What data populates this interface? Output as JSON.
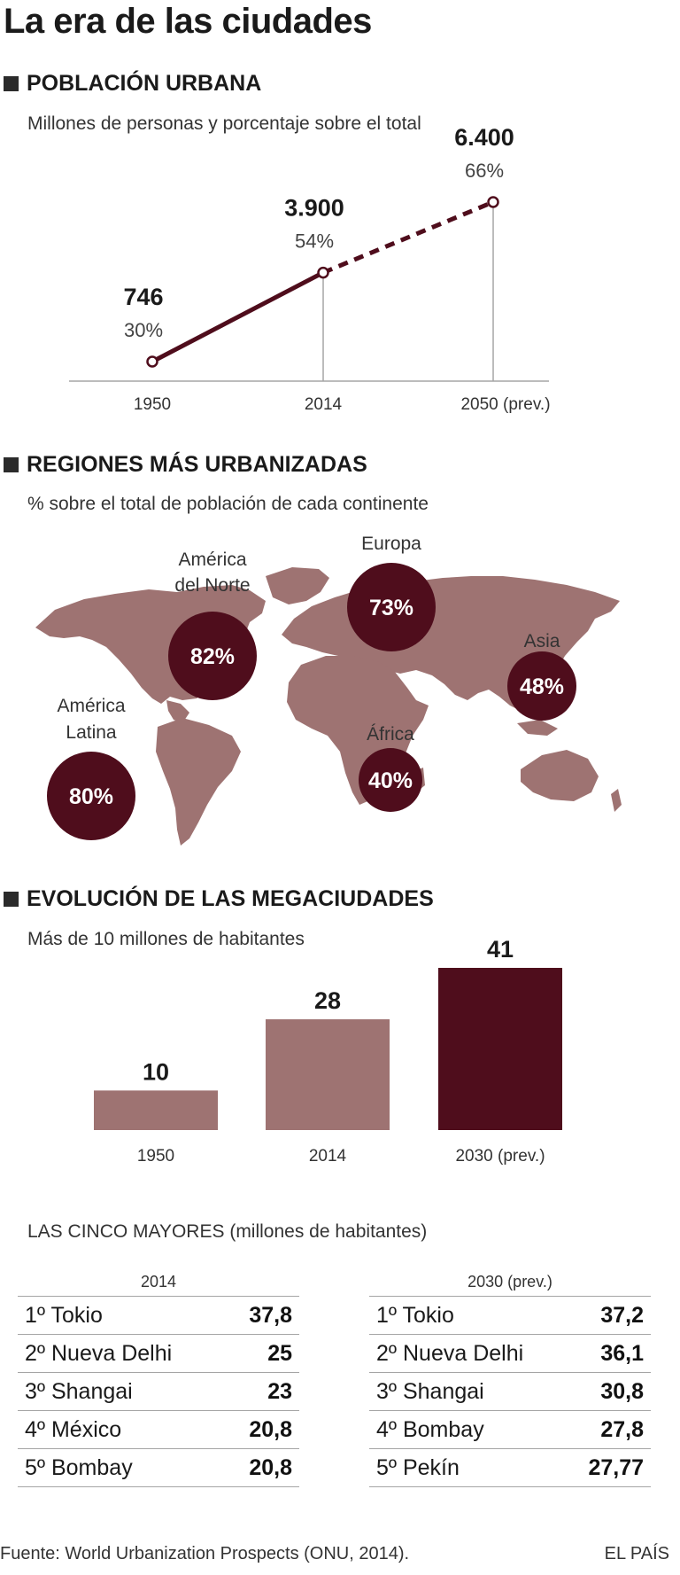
{
  "title": "La era de las ciudades",
  "sections": {
    "urban": {
      "title": "POBLACIÓN URBANA",
      "subtitle": "Millones de personas y porcentaje sobre el total"
    },
    "regions": {
      "title": "REGIONES MÁS URBANIZADAS",
      "subtitle": "% sobre el total de población de cada continente"
    },
    "mega": {
      "title": "EVOLUCIÓN DE LAS MEGACIUDADES",
      "subtitle": "Más de 10 millones de habitantes"
    },
    "top5": {
      "title": "LAS CINCO MAYORES (millones de habitantes)"
    }
  },
  "chart_data": [
    {
      "type": "line",
      "title": "POBLACIÓN URBANA",
      "subtitle": "Millones de personas y porcentaje sobre el total",
      "categories": [
        "1950",
        "2014",
        "2050 (prev.)"
      ],
      "values": [
        746,
        3900,
        6400
      ],
      "value_labels": [
        "746",
        "3.900",
        "6.400"
      ],
      "percent_labels": [
        "30%",
        "54%",
        "66%"
      ],
      "percent_values": [
        30,
        54,
        66
      ],
      "projected_from_index": 1,
      "color": "#4f0d1c"
    },
    {
      "type": "map",
      "title": "REGIONES MÁS URBANIZADAS",
      "regions": [
        {
          "name": "América del Norte",
          "value": 82,
          "label": "82%"
        },
        {
          "name": "Europa",
          "value": 73,
          "label": "73%"
        },
        {
          "name": "América Latina",
          "value": 80,
          "label": "80%"
        },
        {
          "name": "Asia",
          "value": 48,
          "label": "48%"
        },
        {
          "name": "África",
          "value": 40,
          "label": "40%"
        }
      ],
      "land_color": "#9e7372",
      "bubble_color": "#4f0d1c"
    },
    {
      "type": "bar",
      "title": "EVOLUCIÓN DE LAS MEGACIUDADES",
      "categories": [
        "1950",
        "2014",
        "2030 (prev.)"
      ],
      "values": [
        10,
        28,
        41
      ],
      "value_labels": [
        "10",
        "28",
        "41"
      ],
      "colors": [
        "#9e7372",
        "#9e7372",
        "#4f0d1c"
      ],
      "ylim": [
        0,
        41
      ]
    },
    {
      "type": "table",
      "title": "LAS CINCO MAYORES (millones de habitantes)",
      "tables": [
        {
          "year": "2014",
          "rows": [
            {
              "rank": "1º",
              "city": "Tokio",
              "value": "37,8"
            },
            {
              "rank": "2º",
              "city": "Nueva Delhi",
              "value": "25"
            },
            {
              "rank": "3º",
              "city": "Shangai",
              "value": "23"
            },
            {
              "rank": "4º",
              "city": "México",
              "value": "20,8"
            },
            {
              "rank": "5º",
              "city": "Bombay",
              "value": "20,8"
            }
          ]
        },
        {
          "year": "2030 (prev.)",
          "rows": [
            {
              "rank": "1º",
              "city": "Tokio",
              "value": "37,2"
            },
            {
              "rank": "2º",
              "city": "Nueva Delhi",
              "value": "36,1"
            },
            {
              "rank": "3º",
              "city": "Shangai",
              "value": "30,8"
            },
            {
              "rank": "4º",
              "city": "Bombay",
              "value": "27,8"
            },
            {
              "rank": "5º",
              "city": "Pekín",
              "value": "27,77"
            }
          ]
        }
      ]
    }
  ],
  "footer": {
    "source": "Fuente: World Urbanization Prospects (ONU, 2014).",
    "brand": "EL PAÍS"
  }
}
